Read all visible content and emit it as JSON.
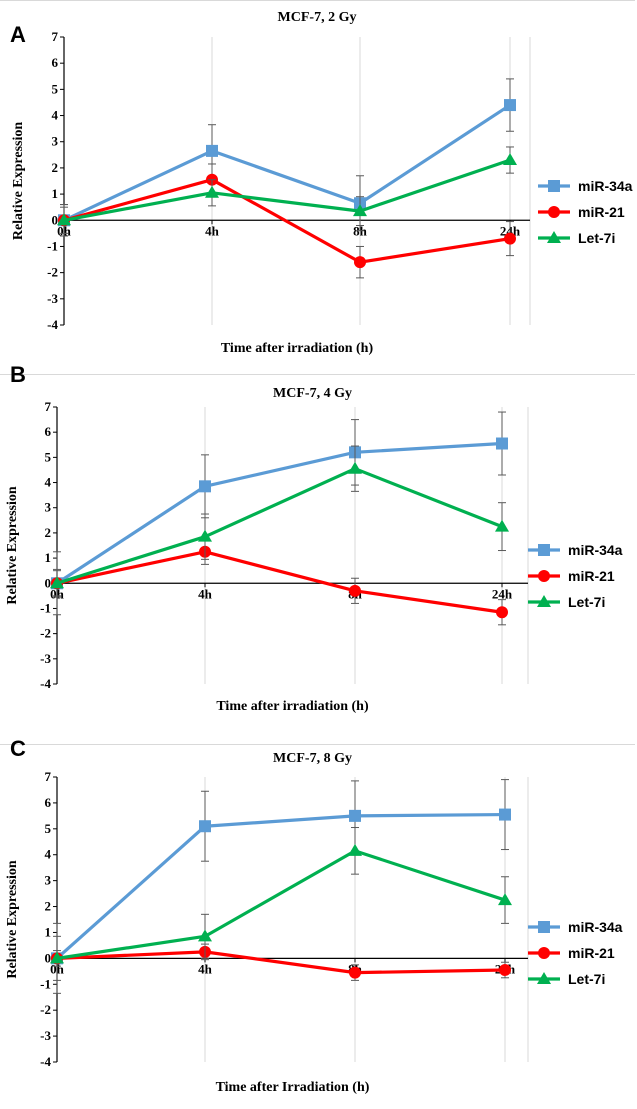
{
  "chart_data": [
    {
      "type": "line",
      "panel_label": "A",
      "title": "MCF-7, 2 Gy",
      "xlabel": "Time after irradiation (h)",
      "ylabel": "Relative Expression",
      "categories": [
        "0h",
        "4h",
        "8h",
        "24h"
      ],
      "ylim": [
        -4,
        7
      ],
      "yticks": [
        -4,
        -3,
        -2,
        -1,
        0,
        1,
        2,
        3,
        4,
        5,
        6,
        7
      ],
      "grid": true,
      "legend_position": "right",
      "series": [
        {
          "name": "miR-34a",
          "color": "#5b9bd5",
          "marker": "square",
          "values": [
            0,
            2.65,
            0.65,
            4.4
          ],
          "errors": [
            0.6,
            1.0,
            1.05,
            1.0
          ]
        },
        {
          "name": "miR-21",
          "color": "#ff0000",
          "marker": "circle",
          "values": [
            0,
            1.55,
            -1.6,
            -0.7
          ],
          "errors": [
            0.6,
            0.6,
            0.6,
            0.65
          ]
        },
        {
          "name": "Let-7i",
          "color": "#00b050",
          "marker": "triangle",
          "values": [
            0,
            1.05,
            0.35,
            2.3
          ],
          "errors": [
            0.5,
            0.5,
            0.55,
            0.5
          ]
        }
      ]
    },
    {
      "type": "line",
      "panel_label": "B",
      "title": "MCF-7, 4 Gy",
      "xlabel": "Time after irradiation (h)",
      "ylabel": "Relative Expression",
      "categories": [
        "0h",
        "4h",
        "8h",
        "24h"
      ],
      "ylim": [
        -4,
        7
      ],
      "yticks": [
        -4,
        -3,
        -2,
        -1,
        0,
        1,
        2,
        3,
        4,
        5,
        6,
        7
      ],
      "grid": true,
      "legend_position": "right",
      "series": [
        {
          "name": "miR-34a",
          "color": "#5b9bd5",
          "marker": "square",
          "values": [
            0,
            3.85,
            5.2,
            5.55
          ],
          "errors": [
            1.25,
            1.25,
            1.3,
            1.25
          ]
        },
        {
          "name": "miR-21",
          "color": "#ff0000",
          "marker": "circle",
          "values": [
            0,
            1.25,
            -0.3,
            -1.15
          ],
          "errors": [
            0.55,
            0.5,
            0.5,
            0.5
          ]
        },
        {
          "name": "Let-7i",
          "color": "#00b050",
          "marker": "triangle",
          "values": [
            0,
            1.85,
            4.55,
            2.25
          ],
          "errors": [
            0.5,
            0.9,
            0.9,
            0.95
          ]
        }
      ]
    },
    {
      "type": "line",
      "panel_label": "C",
      "title": "MCF-7, 8 Gy",
      "xlabel": "Time after Irradiation (h)",
      "ylabel": "Relative Expression",
      "categories": [
        "0h",
        "4h",
        "8h",
        "24h"
      ],
      "ylim": [
        -4,
        7
      ],
      "yticks": [
        -4,
        -3,
        -2,
        -1,
        0,
        1,
        2,
        3,
        4,
        5,
        6,
        7
      ],
      "grid": true,
      "legend_position": "right",
      "series": [
        {
          "name": "miR-34a",
          "color": "#5b9bd5",
          "marker": "square",
          "values": [
            0,
            5.1,
            5.5,
            5.55
          ],
          "errors": [
            1.35,
            1.35,
            1.35,
            1.35
          ]
        },
        {
          "name": "miR-21",
          "color": "#ff0000",
          "marker": "circle",
          "values": [
            0,
            0.25,
            -0.55,
            -0.45
          ],
          "errors": [
            0.3,
            0.3,
            0.3,
            0.3
          ]
        },
        {
          "name": "Let-7i",
          "color": "#00b050",
          "marker": "triangle",
          "values": [
            0,
            0.85,
            4.15,
            2.25
          ],
          "errors": [
            0.85,
            0.85,
            0.9,
            0.9
          ]
        }
      ]
    }
  ]
}
